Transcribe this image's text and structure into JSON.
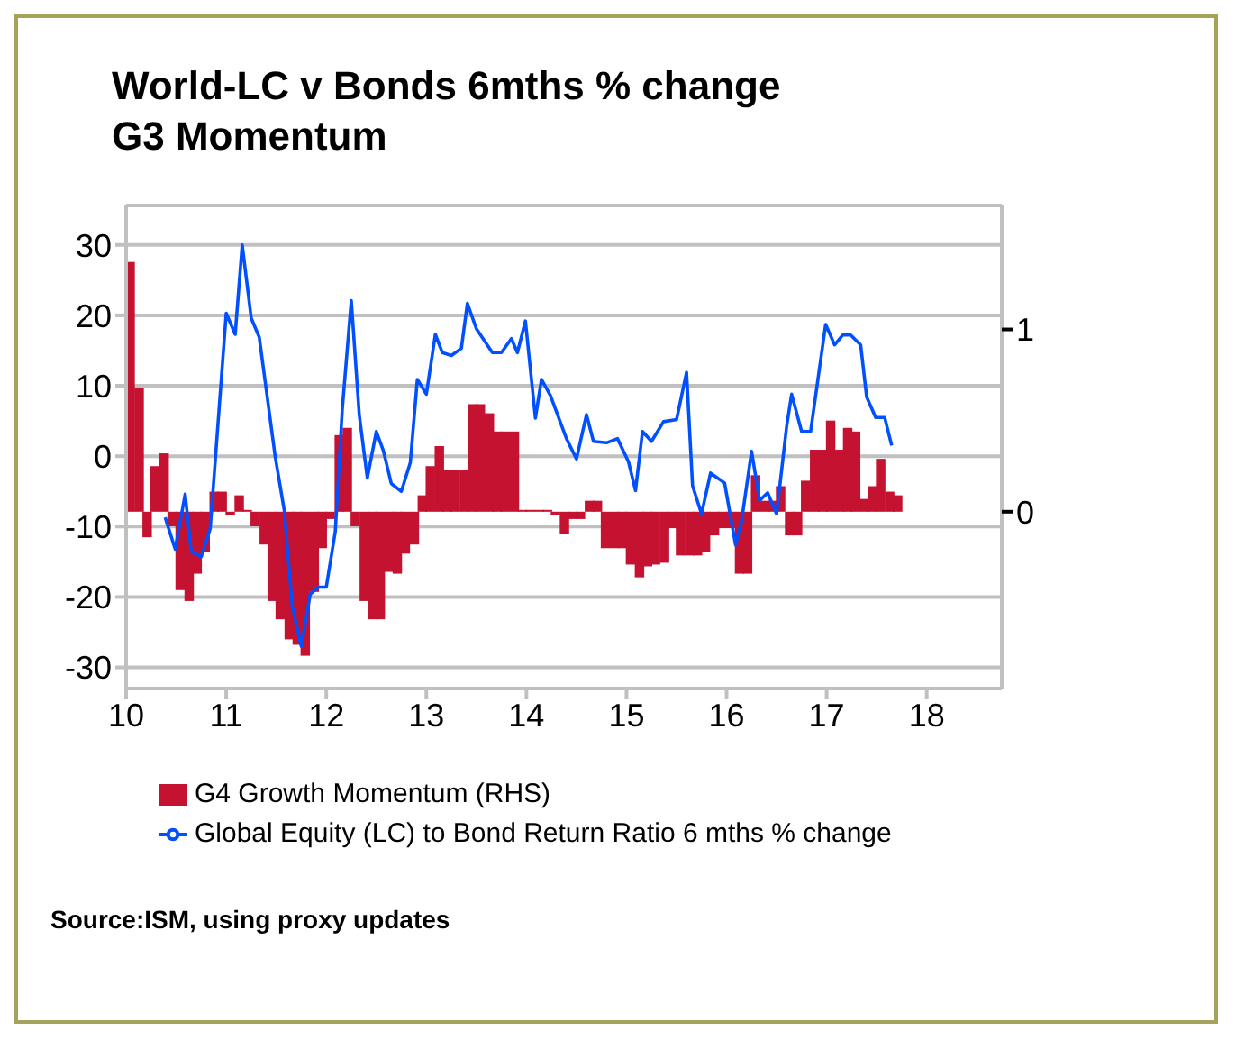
{
  "chart_data": {
    "type": "bar",
    "title": "World-LC v Bonds 6mths % change\nG3 Momentum",
    "x": [
      10.04,
      10.13,
      10.21,
      10.29,
      10.38,
      10.46,
      10.54,
      10.63,
      10.71,
      10.79,
      10.88,
      10.96,
      11.04,
      11.13,
      11.21,
      11.29,
      11.38,
      11.46,
      11.54,
      11.63,
      11.71,
      11.79,
      11.88,
      11.96,
      12.04,
      12.13,
      12.21,
      12.29,
      12.38,
      12.46,
      12.54,
      12.63,
      12.71,
      12.79,
      12.88,
      12.96,
      13.04,
      13.13,
      13.21,
      13.29,
      13.38,
      13.46,
      13.54,
      13.63,
      13.71,
      13.79,
      13.88,
      13.96,
      14.04,
      14.13,
      14.21,
      14.29,
      14.38,
      14.46,
      14.54,
      14.63,
      14.71,
      14.79,
      14.88,
      14.96,
      15.04,
      15.13,
      15.21,
      15.29,
      15.38,
      15.46,
      15.54,
      15.63,
      15.71,
      15.79,
      15.88,
      15.96,
      16.04,
      16.13,
      16.21,
      16.29,
      16.38,
      16.46,
      16.54,
      16.63,
      16.71,
      16.79,
      16.88,
      16.96,
      17.04,
      17.13,
      17.21,
      17.29,
      17.38,
      17.46,
      17.54,
      17.63,
      17.71
    ],
    "series": [
      {
        "name": "G4 Growth Momentum (RHS)",
        "axis": "y2",
        "color": "#c41230",
        "values": [
          1.37,
          0.68,
          -0.14,
          0.25,
          0.32,
          -0.08,
          -0.43,
          -0.49,
          -0.34,
          -0.22,
          0.11,
          0.11,
          -0.02,
          0.09,
          0.01,
          -0.08,
          -0.18,
          -0.49,
          -0.59,
          -0.7,
          -0.73,
          -0.79,
          -0.44,
          -0.2,
          -0.04,
          0.42,
          0.46,
          -0.08,
          -0.49,
          -0.59,
          -0.59,
          -0.33,
          -0.34,
          -0.23,
          -0.18,
          0.09,
          0.25,
          0.36,
          0.23,
          0.23,
          0.23,
          0.59,
          0.59,
          0.54,
          0.44,
          0.44,
          0.44,
          0.01,
          0.01,
          0.01,
          0.01,
          -0.02,
          -0.12,
          -0.04,
          -0.04,
          0.06,
          0.06,
          -0.2,
          -0.2,
          -0.2,
          -0.29,
          -0.36,
          -0.3,
          -0.29,
          -0.28,
          -0.09,
          -0.24,
          -0.24,
          -0.24,
          -0.22,
          -0.13,
          -0.09,
          -0.09,
          -0.34,
          -0.34,
          0.2,
          0.06,
          0.06,
          0.14,
          -0.13,
          -0.13,
          0.17,
          0.34,
          0.34,
          0.5,
          0.34,
          0.46,
          0.44,
          0.07,
          0.14,
          0.29,
          0.11,
          0.09
        ]
      },
      {
        "name": "Global Equity (LC) to Bond Return Ratio 6 mths % change",
        "type": "line",
        "color": "#0050ff",
        "x": [
          10.39,
          10.49,
          10.59,
          10.65,
          10.75,
          10.84,
          11.0,
          11.09,
          11.16,
          11.25,
          11.33,
          11.49,
          11.58,
          11.66,
          11.75,
          11.84,
          11.92,
          12.0,
          12.09,
          12.16,
          12.25,
          12.33,
          12.41,
          12.5,
          12.57,
          12.65,
          12.75,
          12.84,
          12.91,
          13.0,
          13.09,
          13.16,
          13.25,
          13.35,
          13.41,
          13.5,
          13.66,
          13.75,
          13.85,
          13.91,
          13.99,
          14.09,
          14.15,
          14.24,
          14.4,
          14.5,
          14.6,
          14.67,
          14.8,
          14.91,
          15.02,
          15.09,
          15.16,
          15.25,
          15.37,
          15.5,
          15.6,
          15.66,
          15.75,
          15.84,
          15.98,
          16.09,
          16.15,
          16.25,
          16.33,
          16.41,
          16.5,
          16.6,
          16.65,
          16.75,
          16.84,
          16.99,
          17.08,
          17.16,
          17.24,
          17.34,
          17.4,
          17.49,
          17.58,
          17.65
        ],
        "values": [
          -8.7,
          -13.2,
          -5.4,
          -13.5,
          -14.3,
          -10.3,
          20.3,
          17.3,
          30.0,
          19.6,
          16.9,
          -0.1,
          -7.7,
          -21.3,
          -27.0,
          -19.6,
          -18.6,
          -18.6,
          -10.7,
          6.7,
          22.1,
          5.8,
          -3.1,
          3.5,
          0.8,
          -3.9,
          -5.0,
          -0.9,
          10.9,
          8.8,
          17.3,
          14.7,
          14.3,
          15.3,
          21.7,
          18.1,
          14.7,
          14.7,
          16.7,
          14.7,
          19.2,
          5.4,
          10.9,
          8.6,
          2.5,
          -0.4,
          5.9,
          2.1,
          1.9,
          2.5,
          -0.8,
          -4.9,
          3.5,
          2.1,
          4.9,
          5.2,
          11.9,
          -4.2,
          -8.2,
          -2.4,
          -3.8,
          -12.6,
          -9.2,
          0.7,
          -6.3,
          -5.2,
          -8.2,
          4.2,
          8.8,
          3.5,
          3.5,
          18.7,
          15.8,
          17.2,
          17.2,
          15.8,
          8.4,
          5.5,
          5.5,
          1.5
        ]
      }
    ],
    "xlim": [
      10,
      18.75
    ],
    "xticks": [
      10,
      11,
      12,
      13,
      14,
      15,
      16,
      17,
      18
    ],
    "ylim": [
      -33,
      35.6
    ],
    "yticks": [
      -30,
      -20,
      -10,
      0,
      10,
      20,
      30
    ],
    "y2lim": [
      -0.97,
      1.68
    ],
    "y2ticks": [
      0,
      1
    ],
    "grid": "y",
    "legend": "bottom",
    "annotations": [
      "Source:ISM, using proxy updates"
    ]
  }
}
